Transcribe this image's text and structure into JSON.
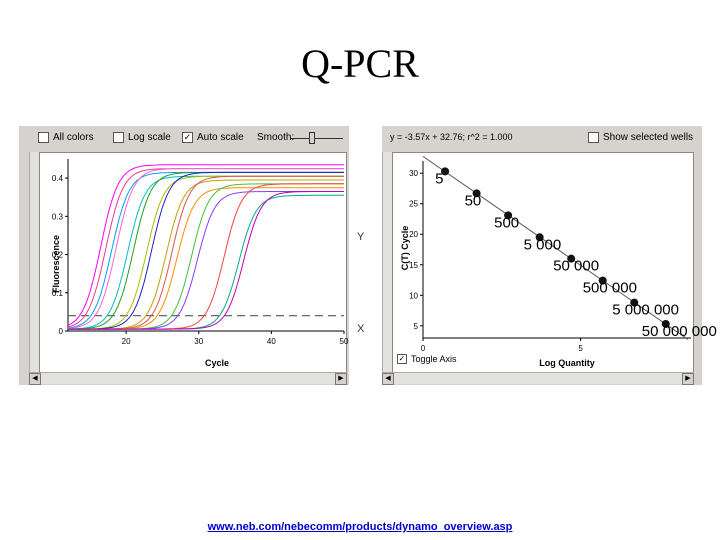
{
  "title": "Q-PCR",
  "footer_link": "www.neb.com/nebecomm/products/dynamo_overview.asp",
  "left_panel": {
    "all_colors_label": "All colors",
    "log_scale_label": "Log scale",
    "auto_scale_label": "Auto scale",
    "smooth_label": "Smooth:",
    "y_label": "Y",
    "x_label": "X"
  },
  "right_panel": {
    "equation": "y = -3.57x + 32.76;  r^2 = 1.000",
    "show_selected_label": "Show selected wells",
    "toggle_axis_label": "Toggle Axis"
  },
  "chart_data": [
    {
      "type": "line",
      "xlabel": "Cycle",
      "ylabel": "Fluorescence",
      "xlim": [
        12,
        50
      ],
      "ylim": [
        0,
        0.45
      ],
      "x_ticks": [
        "20",
        "30",
        "40",
        "50"
      ],
      "y_ticks": [
        "0",
        "0.1",
        "0.2",
        "0.3",
        "0.4"
      ],
      "threshold": 0.04,
      "series_colors": [
        "#ff00ff",
        "#e83c8c",
        "#00a0ff",
        "#ff66cc",
        "#00c0c0",
        "#20a020",
        "#a0c000",
        "#2020cc",
        "#c0a000",
        "#e05050",
        "#ff8c00",
        "#40c040",
        "#8040ff",
        "#ff4040",
        "#00b080",
        "#c000c0"
      ],
      "series_midpoints": [
        16.5,
        17.2,
        18.0,
        18.6,
        20.2,
        21.0,
        22.8,
        23.5,
        25.5,
        26.3,
        27.0,
        29.0,
        29.8,
        33.5,
        35.5,
        36.2
      ],
      "series_plateaus": [
        0.43,
        0.42,
        0.41,
        0.42,
        0.4,
        0.41,
        0.4,
        0.41,
        0.39,
        0.4,
        0.37,
        0.38,
        0.36,
        0.38,
        0.35,
        0.36
      ]
    },
    {
      "type": "scatter",
      "xlabel": "Log Quantity",
      "ylabel": "C(T) Cycle",
      "xlim": [
        0,
        8.5
      ],
      "ylim": [
        3,
        32
      ],
      "x_ticks": [
        "0",
        "5"
      ],
      "y_ticks": [
        "5",
        "10",
        "15",
        "20",
        "25",
        "30"
      ],
      "x": [
        0.7,
        1.7,
        2.7,
        3.7,
        4.7,
        5.7,
        6.7,
        7.7
      ],
      "y": [
        30.3,
        26.7,
        23.1,
        19.5,
        16.0,
        12.4,
        8.8,
        5.3
      ],
      "labels": [
        "5",
        "50",
        "500",
        "5 000",
        "50 000",
        "500 000",
        "5 000 000",
        "50 000 000"
      ],
      "fit": {
        "slope": -3.57,
        "intercept": 32.76
      }
    }
  ]
}
